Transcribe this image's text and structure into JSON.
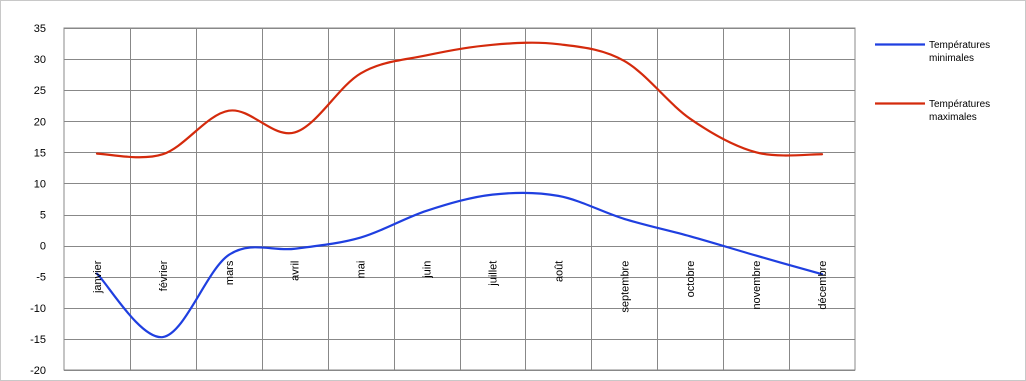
{
  "chart_data": {
    "type": "line",
    "title": "",
    "xlabel": "",
    "ylabel": "",
    "categories": [
      "janvier",
      "février",
      "mars",
      "avril",
      "mai",
      "juin",
      "juillet",
      "août",
      "septembre",
      "octobre",
      "novembre",
      "décembre"
    ],
    "ylim": [
      -20,
      35
    ],
    "yticks": [
      35,
      30,
      25,
      20,
      15,
      10,
      5,
      0,
      -5,
      -10,
      -15,
      -20
    ],
    "grid": true,
    "legend_position": "right",
    "series": [
      {
        "name_lines": [
          "Températures",
          "minimales"
        ],
        "color": "#1f3fe0",
        "values": [
          -4.5,
          -14.7,
          -1.5,
          -0.5,
          1.3,
          5.6,
          8.2,
          8.0,
          4.3,
          1.5,
          -1.6,
          -4.6
        ]
      },
      {
        "name_lines": [
          "Températures",
          "maximales"
        ],
        "color": "#d42a0c",
        "values": [
          14.8,
          14.7,
          21.7,
          18.2,
          27.7,
          30.6,
          32.3,
          32.4,
          29.7,
          20.4,
          15.0,
          14.7
        ]
      }
    ]
  }
}
